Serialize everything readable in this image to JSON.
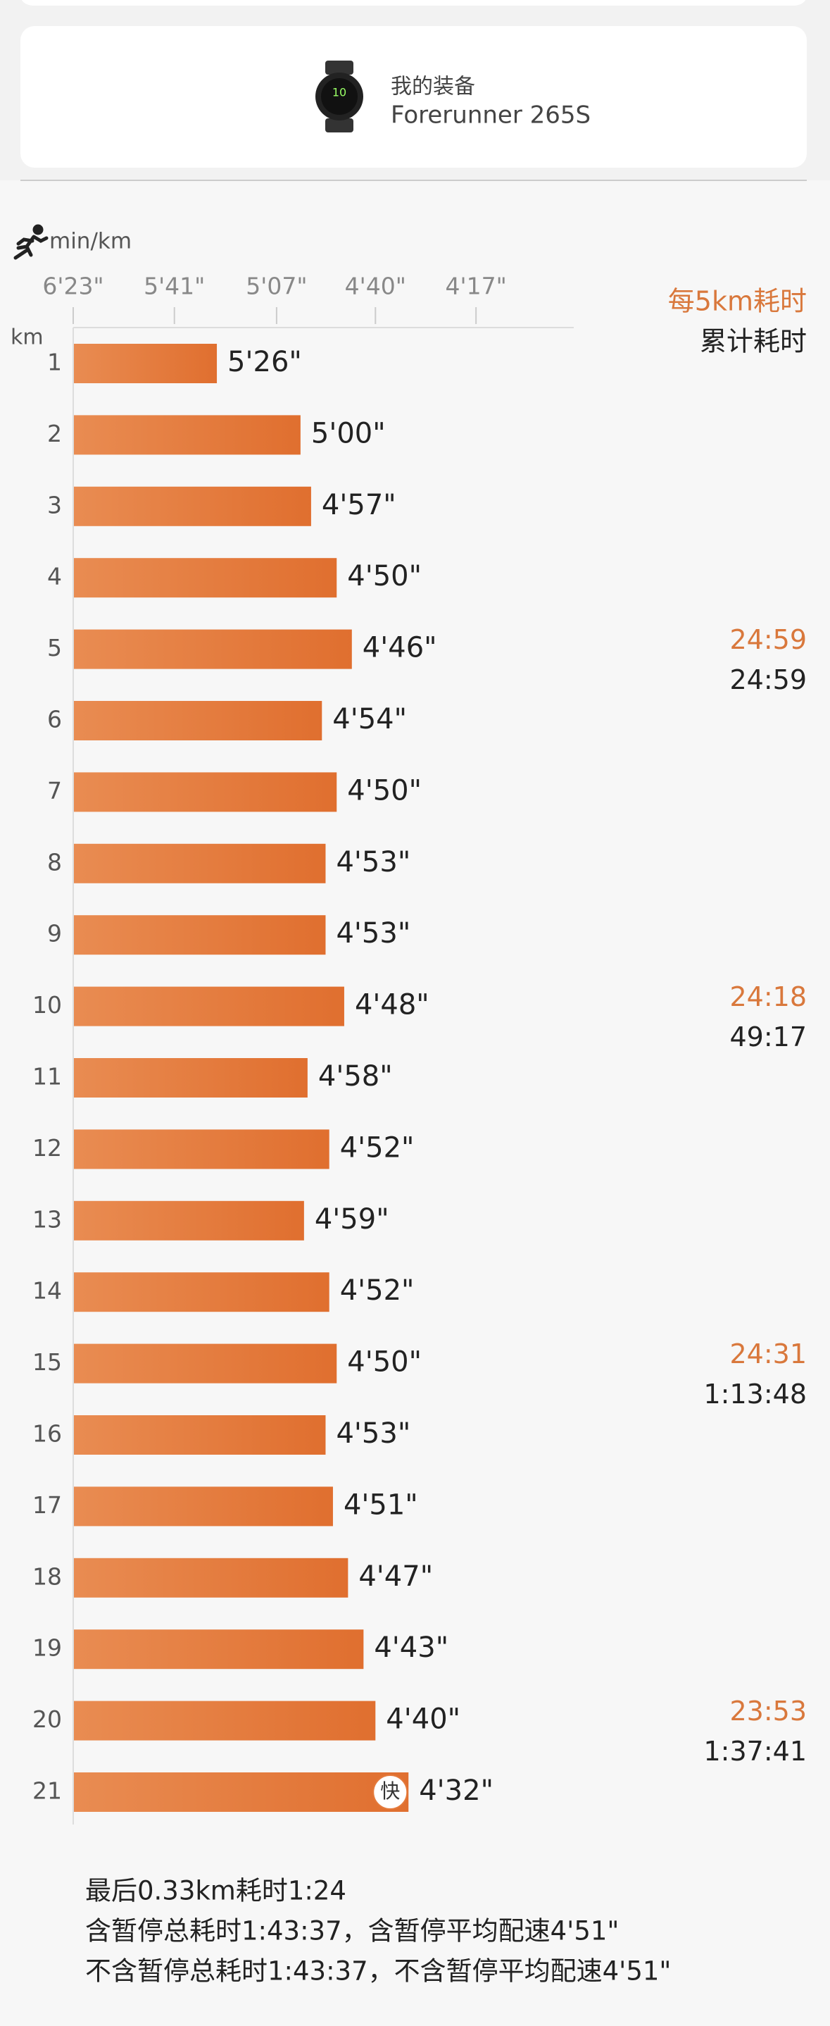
{
  "device": {
    "label": "我的装备",
    "name": "Forerunner 265S"
  },
  "chart_data": {
    "type": "bar",
    "orientation": "horizontal",
    "x_scale": "reciprocal",
    "x_unit_label": "min/km",
    "y_unit_label": "km",
    "categories": [
      "1",
      "2",
      "3",
      "4",
      "5",
      "6",
      "7",
      "8",
      "9",
      "10",
      "11",
      "12",
      "13",
      "14",
      "15",
      "16",
      "17",
      "18",
      "19",
      "20",
      "21"
    ],
    "values": [
      326,
      300,
      297,
      290,
      286,
      294,
      290,
      293,
      293,
      288,
      298,
      292,
      299,
      292,
      290,
      293,
      291,
      287,
      283,
      280,
      272
    ],
    "value_labels": [
      "5'26\"",
      "5'00\"",
      "4'57\"",
      "4'50\"",
      "4'46\"",
      "4'54\"",
      "4'50\"",
      "4'53\"",
      "4'53\"",
      "4'48\"",
      "4'58\"",
      "4'52\"",
      "4'59\"",
      "4'52\"",
      "4'50\"",
      "4'53\"",
      "4'51\"",
      "4'47\"",
      "4'43\"",
      "4'40\"",
      "4'32\""
    ],
    "color": "#e47a3c",
    "xlim": [
      383,
      238
    ],
    "xticks": [
      {
        "value": 383,
        "label": "6'23\""
      },
      {
        "value": 341,
        "label": "5'41\""
      },
      {
        "value": 307,
        "label": "5'07\""
      },
      {
        "value": 280,
        "label": "4'40\""
      },
      {
        "value": 257,
        "label": "4'17\""
      }
    ],
    "fastest_label": "快",
    "split_header": "每5km耗时",
    "cumulative_header": "累计耗时",
    "split_times": [
      null,
      null,
      null,
      null,
      "24:59",
      null,
      null,
      null,
      null,
      "24:18",
      null,
      null,
      null,
      null,
      "24:31",
      null,
      null,
      null,
      null,
      "23:53",
      null
    ],
    "cumulative_times": [
      null,
      null,
      null,
      null,
      "24:59",
      null,
      null,
      null,
      null,
      "49:17",
      null,
      null,
      null,
      null,
      "1:13:48",
      null,
      null,
      null,
      null,
      "1:37:41",
      null
    ]
  },
  "footer": [
    "最后0.33km耗时1:24",
    "含暂停总耗时1:43:37，含暂停平均配速4'51\"",
    "不含暂停总耗时1:43:37，不含暂停平均配速4'51\""
  ]
}
